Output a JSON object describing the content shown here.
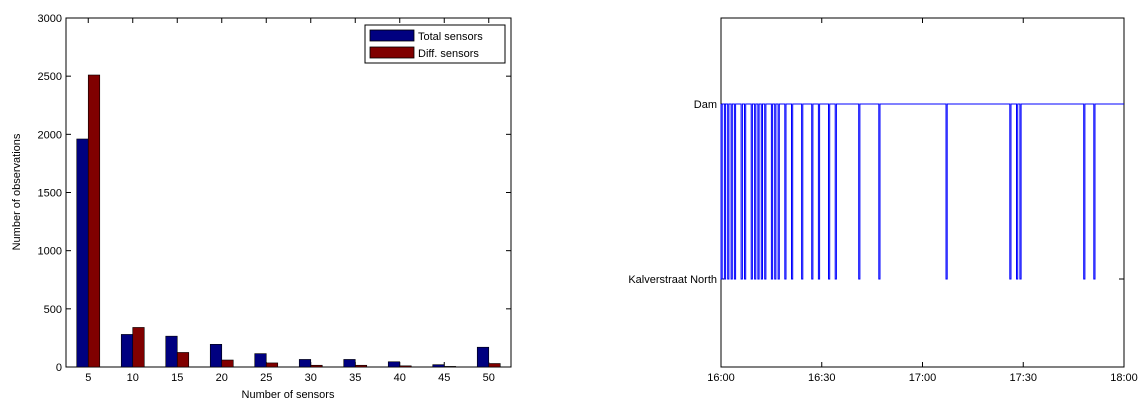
{
  "chart_data": [
    {
      "type": "bar",
      "title": "",
      "xlabel": "Number of sensors",
      "ylabel": "Number of observations",
      "categories": [
        "5",
        "10",
        "15",
        "20",
        "25",
        "30",
        "35",
        "40",
        "45",
        "50"
      ],
      "ylim": [
        0,
        3000
      ],
      "yticks": [
        "0",
        "500",
        "1000",
        "1500",
        "2000",
        "2500",
        "3000"
      ],
      "grid": false,
      "legend_position": "top-right",
      "series": [
        {
          "name": "Total sensors",
          "color": "#000080",
          "values": [
            1960,
            280,
            265,
            195,
            115,
            65,
            65,
            45,
            20,
            170
          ]
        },
        {
          "name": "Diff. sensors",
          "color": "#800000",
          "values": [
            2510,
            340,
            125,
            60,
            35,
            15,
            15,
            10,
            5,
            30
          ]
        }
      ]
    },
    {
      "type": "line",
      "title": "",
      "xlabel": "",
      "ylabel": "",
      "xticks": [
        "16:00",
        "16:30",
        "17:00",
        "17:30",
        "18:00"
      ],
      "xlim": [
        "16:00",
        "18:00"
      ],
      "yticks": [
        "Kalverstraat North",
        "Dam"
      ],
      "grid": false,
      "color": "#0000ff",
      "series": [
        {
          "default_state": "Dam",
          "kalverstraat_north_times": [
            "16:00",
            "16:01",
            "16:02",
            "16:03",
            "16:04",
            "16:06",
            "16:07",
            "16:09",
            "16:10",
            "16:11",
            "16:12",
            "16:13",
            "16:15",
            "16:16",
            "16:17",
            "16:19",
            "16:21",
            "16:24",
            "16:27",
            "16:29",
            "16:32",
            "16:34",
            "16:41",
            "16:47",
            "17:07",
            "17:26",
            "17:28",
            "17:29",
            "17:48",
            "17:51"
          ]
        }
      ]
    }
  ]
}
